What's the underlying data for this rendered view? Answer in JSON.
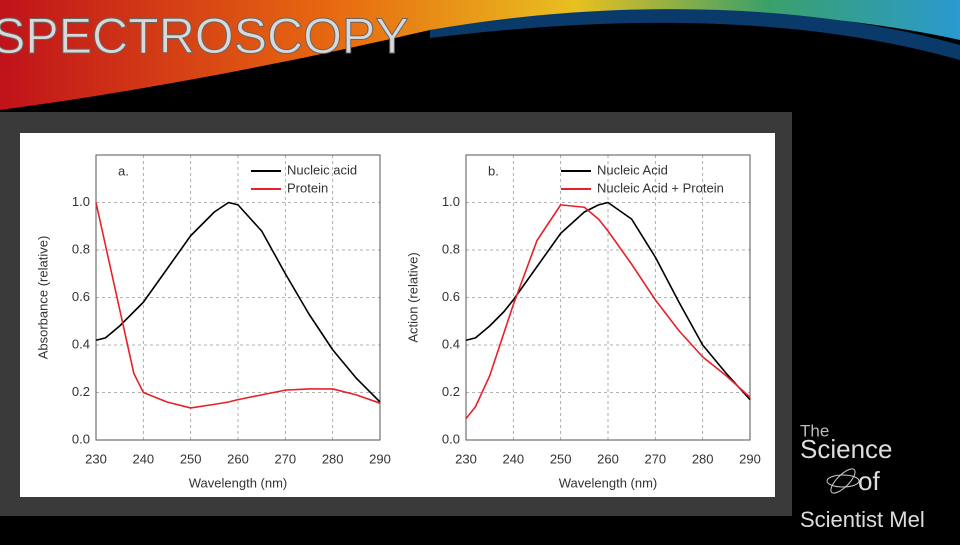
{
  "slide": {
    "title": "SPECTROSCOPY",
    "logo": [
      "The",
      "Science",
      "of",
      "Scientist Mel"
    ]
  },
  "chart_data": [
    {
      "type": "line",
      "annotation": "a.",
      "xlabel": "Wavelength (nm)",
      "ylabel": "Absorbance (relative)",
      "x": [
        230,
        232,
        235,
        238,
        240,
        245,
        250,
        255,
        258,
        260,
        265,
        270,
        275,
        280,
        285,
        290
      ],
      "series": [
        {
          "name": "Nucleic acid",
          "color": "#000000",
          "values": [
            0.42,
            0.43,
            0.48,
            0.54,
            0.58,
            0.72,
            0.86,
            0.96,
            1.0,
            0.99,
            0.88,
            0.7,
            0.53,
            0.38,
            0.26,
            0.16
          ]
        },
        {
          "name": "Protein",
          "color": "#e8202a",
          "values": [
            1.0,
            0.82,
            0.55,
            0.28,
            0.2,
            0.16,
            0.135,
            0.15,
            0.16,
            0.17,
            0.19,
            0.21,
            0.215,
            0.215,
            0.19,
            0.155
          ]
        }
      ],
      "xlim": [
        230,
        290
      ],
      "xticks": [
        230,
        240,
        250,
        260,
        270,
        280,
        290
      ],
      "ylim": [
        0,
        1.2
      ],
      "yticks": [
        {
          "value": 0,
          "label": "0.0"
        },
        0.2,
        0.4,
        0.6,
        0.8,
        {
          "value": 1,
          "label": "1.0"
        }
      ],
      "grid": true,
      "legend": "upper right"
    },
    {
      "type": "line",
      "annotation": "b.",
      "xlabel": "Wavelength (nm)",
      "ylabel": "Action (relative)",
      "x": [
        230,
        232,
        235,
        238,
        240,
        245,
        250,
        255,
        258,
        260,
        265,
        270,
        275,
        280,
        285,
        290
      ],
      "series": [
        {
          "name": "Nucleic Acid",
          "color": "#000000",
          "values": [
            0.42,
            0.43,
            0.48,
            0.54,
            0.59,
            0.73,
            0.87,
            0.96,
            0.99,
            1.0,
            0.93,
            0.77,
            0.58,
            0.4,
            0.28,
            0.17
          ]
        },
        {
          "name": "Nucleic Acid + Protein",
          "color": "#e8202a",
          "values": [
            0.09,
            0.14,
            0.27,
            0.45,
            0.57,
            0.84,
            0.99,
            0.98,
            0.93,
            0.88,
            0.74,
            0.59,
            0.46,
            0.35,
            0.27,
            0.18
          ]
        }
      ],
      "xlim": [
        230,
        290
      ],
      "xticks": [
        230,
        240,
        250,
        260,
        270,
        280,
        290
      ],
      "ylim": [
        0,
        1.2
      ],
      "yticks": [
        {
          "value": 0,
          "label": "0.0"
        },
        0.2,
        0.4,
        0.6,
        0.8,
        {
          "value": 1,
          "label": "1.0"
        }
      ],
      "grid": true,
      "legend": "upper right"
    }
  ]
}
